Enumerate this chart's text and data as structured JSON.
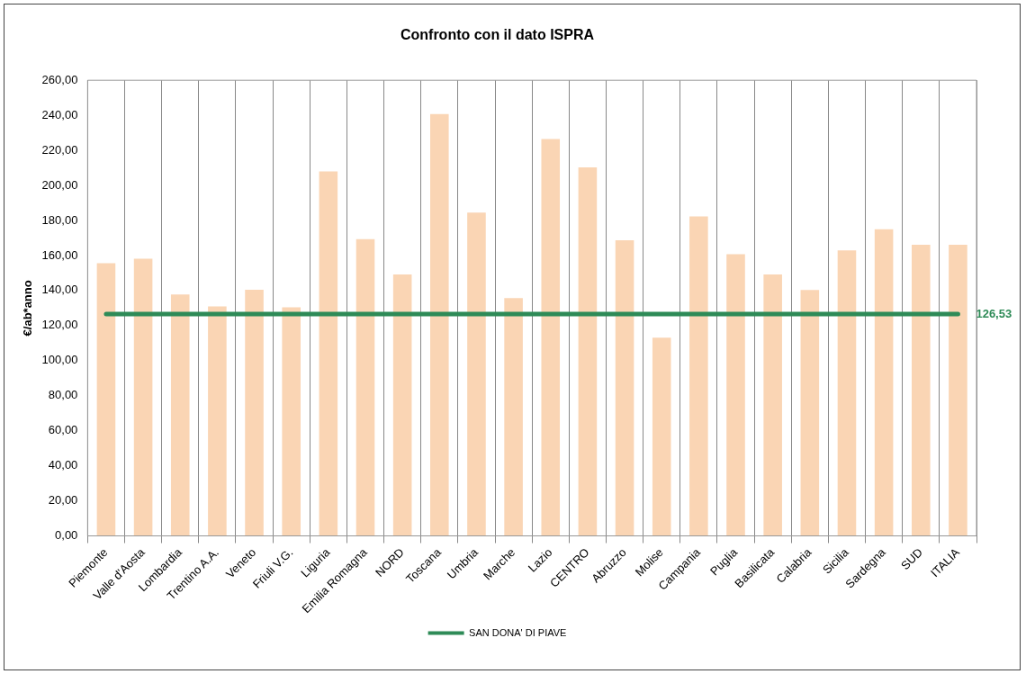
{
  "chart_data": {
    "type": "bar",
    "title": "Confronto con il dato ISPRA",
    "ylabel": "€/ab*anno",
    "categories": [
      "Piemonte",
      "Valle d'Aosta",
      "Lombardia",
      "Trentino A.A.",
      "Veneto",
      "Friuli V.G.",
      "Liguria",
      "Emilia Romagna",
      "NORD",
      "Toscana",
      "Umbria",
      "Marche",
      "Lazio",
      "CENTRO",
      "Abruzzo",
      "Molise",
      "Campania",
      "Puglia",
      "Basilicata",
      "Calabria",
      "Sicilia",
      "Sardegna",
      "SUD",
      "ITALIA"
    ],
    "series": [
      {
        "color": "#fad5b4",
        "values": [
          155.6,
          158.2,
          137.7,
          131.0,
          140.5,
          130.5,
          208.0,
          169.4,
          149.2,
          240.7,
          184.5,
          135.7,
          226.5,
          210.3,
          168.7,
          113.1,
          182.3,
          160.8,
          149.2,
          140.3,
          162.9,
          175.0,
          166.1,
          166.1
        ]
      },
      {
        "type": "line",
        "name": "SAN DONA' DI PIAVE",
        "color": "#2e8b57",
        "values": [
          126.53,
          126.53,
          126.53,
          126.53,
          126.53,
          126.53,
          126.53,
          126.53,
          126.53,
          126.53,
          126.53,
          126.53,
          126.53,
          126.53,
          126.53,
          126.53,
          126.53,
          126.53,
          126.53,
          126.53,
          126.53,
          126.53,
          126.53,
          126.53
        ],
        "value_labels": [
          null,
          null,
          null,
          null,
          null,
          null,
          null,
          null,
          null,
          null,
          null,
          null,
          null,
          null,
          null,
          null,
          null,
          null,
          null,
          null,
          null,
          null,
          null,
          "126,53"
        ]
      }
    ],
    "ylim": [
      0,
      260
    ],
    "yticks": [
      {
        "value": 0,
        "label": "0,00"
      },
      {
        "value": 20,
        "label": "20,00"
      },
      {
        "value": 40,
        "label": "40,00"
      },
      {
        "value": 60,
        "label": "60,00"
      },
      {
        "value": 80,
        "label": "80,00"
      },
      {
        "value": 100,
        "label": "100,00"
      },
      {
        "value": 120,
        "label": "120,00"
      },
      {
        "value": 140,
        "label": "140,00"
      },
      {
        "value": 160,
        "label": "160,00"
      },
      {
        "value": 180,
        "label": "180,00"
      },
      {
        "value": 200,
        "label": "200,00"
      },
      {
        "value": 220,
        "label": "220,00"
      },
      {
        "value": 240,
        "label": "240,00"
      },
      {
        "value": 260,
        "label": "260,00"
      }
    ],
    "grid": "x",
    "legend": "bottom",
    "marker": "none",
    "line_style": "solid"
  }
}
